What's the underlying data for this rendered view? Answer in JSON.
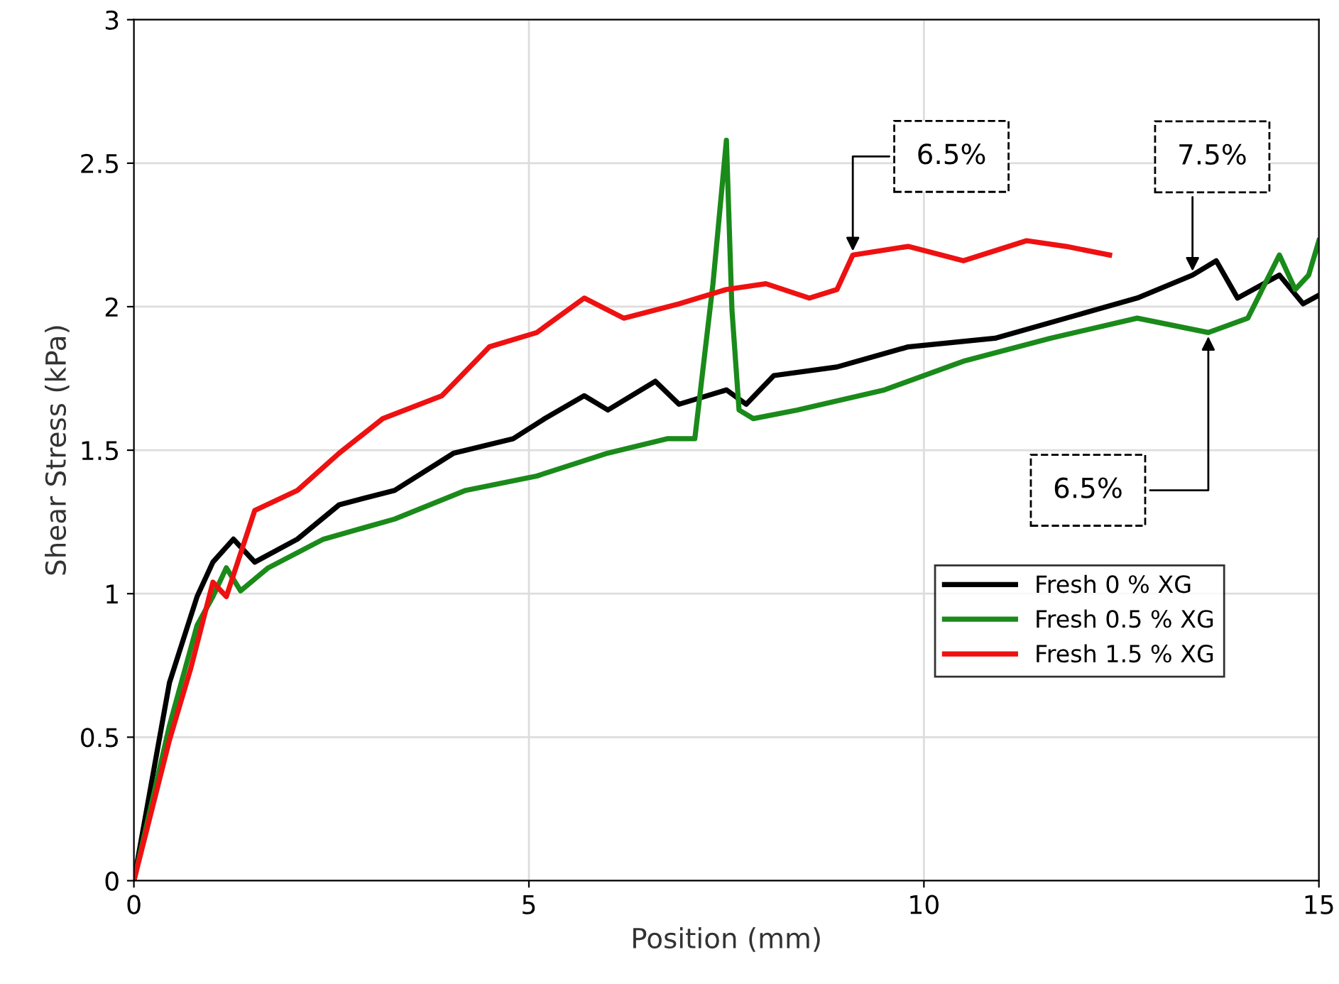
{
  "chart_data": {
    "type": "line",
    "xlabel": "Position (mm)",
    "ylabel": "Shear Stress (kPa)",
    "xlim": [
      0,
      15
    ],
    "ylim": [
      0,
      3
    ],
    "xticks": [
      0,
      5,
      10,
      15
    ],
    "yticks": [
      0,
      0.5,
      1,
      1.5,
      2,
      2.5,
      3
    ],
    "grid": true,
    "legend": "right",
    "marker": "none",
    "line_style": "solid",
    "series": [
      {
        "name": "Fresh 0 % XG",
        "color": "#000000",
        "x": [
          0,
          0.45,
          0.8,
          1.0,
          1.26,
          1.53,
          2.07,
          2.6,
          3.3,
          4.05,
          4.8,
          5.2,
          5.7,
          6.0,
          6.6,
          6.9,
          7.5,
          7.75,
          8.1,
          8.9,
          9.8,
          10.9,
          11.8,
          12.7,
          13.4,
          13.7,
          13.97,
          14.5,
          14.8,
          15
        ],
        "values": [
          0,
          0.69,
          0.99,
          1.11,
          1.19,
          1.11,
          1.19,
          1.31,
          1.36,
          1.49,
          1.54,
          1.61,
          1.69,
          1.64,
          1.74,
          1.66,
          1.71,
          1.66,
          1.76,
          1.79,
          1.86,
          1.89,
          1.96,
          2.03,
          2.11,
          2.16,
          2.03,
          2.11,
          2.01,
          2.04
        ]
      },
      {
        "name": "Fresh 0.5 % XG",
        "color": "#1a8a1a",
        "x": [
          0,
          0.45,
          0.8,
          1.0,
          1.17,
          1.35,
          1.7,
          2.4,
          3.3,
          4.2,
          5.1,
          6.0,
          6.75,
          7.1,
          7.33,
          7.5,
          7.57,
          7.66,
          7.84,
          8.4,
          9.5,
          10.5,
          11.6,
          12.7,
          13.6,
          14.1,
          14.5,
          14.7,
          14.87,
          15
        ],
        "values": [
          0,
          0.54,
          0.89,
          0.99,
          1.09,
          1.01,
          1.09,
          1.19,
          1.26,
          1.36,
          1.41,
          1.49,
          1.54,
          1.54,
          2.08,
          2.58,
          1.99,
          1.64,
          1.61,
          1.64,
          1.71,
          1.81,
          1.89,
          1.96,
          1.91,
          1.96,
          2.18,
          2.06,
          2.11,
          2.23
        ]
      },
      {
        "name": "Fresh 1.5 % XG",
        "color": "#ee1111",
        "x": [
          0,
          0.45,
          0.72,
          1.0,
          1.17,
          1.53,
          2.07,
          2.6,
          3.15,
          3.9,
          4.5,
          5.1,
          5.7,
          6.2,
          6.9,
          7.5,
          8.0,
          8.55,
          8.9,
          9.1,
          9.8,
          10.5,
          11.3,
          11.8,
          12.35
        ],
        "values": [
          0,
          0.49,
          0.74,
          1.04,
          0.99,
          1.29,
          1.36,
          1.49,
          1.61,
          1.69,
          1.86,
          1.91,
          2.03,
          1.96,
          2.01,
          2.06,
          2.08,
          2.03,
          2.06,
          2.18,
          2.21,
          2.16,
          2.23,
          2.21,
          2.18
        ]
      }
    ],
    "annotations": [
      {
        "text": "6.5%",
        "x": 9.1,
        "y": 2.18
      },
      {
        "text": "7.5%",
        "x": 13.4,
        "y": 2.11
      },
      {
        "text": "6.5%",
        "x": 13.6,
        "y": 1.91
      }
    ]
  }
}
